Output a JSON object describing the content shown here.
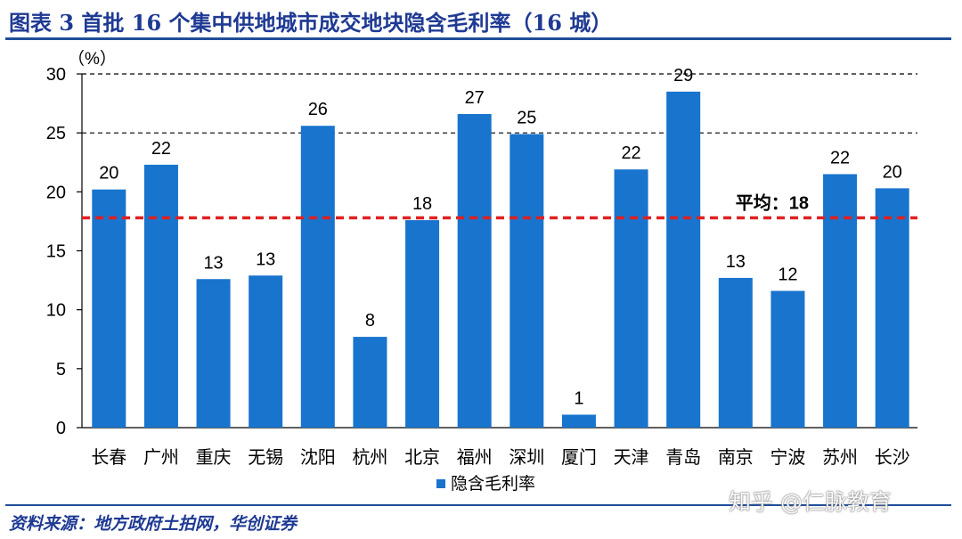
{
  "header": {
    "title": "图表 3  首批 16 个集中供地城市成交地块隐含毛利率（16 城）"
  },
  "footer": {
    "source": "资料来源：地方政府土拍网，华创证券"
  },
  "watermark": "知乎 @仁脉教育",
  "colors": {
    "bar": "#1874cd",
    "avg_line": "#e02020",
    "title": "#1f3a93"
  },
  "chart_data": {
    "type": "bar",
    "unit_label": "（%）",
    "categories": [
      "长春",
      "广州",
      "重庆",
      "无锡",
      "沈阳",
      "杭州",
      "北京",
      "福州",
      "深圳",
      "厦门",
      "天津",
      "青岛",
      "南京",
      "宁波",
      "苏州",
      "长沙"
    ],
    "values": [
      20.2,
      22.3,
      12.6,
      12.9,
      25.6,
      7.7,
      17.6,
      26.6,
      24.9,
      1.1,
      21.9,
      28.5,
      12.7,
      11.6,
      21.5,
      20.3
    ],
    "data_labels": [
      "20",
      "22",
      "13",
      "13",
      "26",
      "8",
      "18",
      "27",
      "25",
      "1",
      "22",
      "29",
      "13",
      "12",
      "22",
      "20"
    ],
    "series": [
      {
        "name": "隐含毛利率"
      }
    ],
    "ylim": [
      0,
      30
    ],
    "yticks": [
      0,
      5,
      10,
      15,
      20,
      25,
      30
    ],
    "gridlines": [
      25,
      30
    ],
    "average": {
      "value": 17.8,
      "label": "平均：18"
    },
    "legend_position": "bottom-center"
  }
}
